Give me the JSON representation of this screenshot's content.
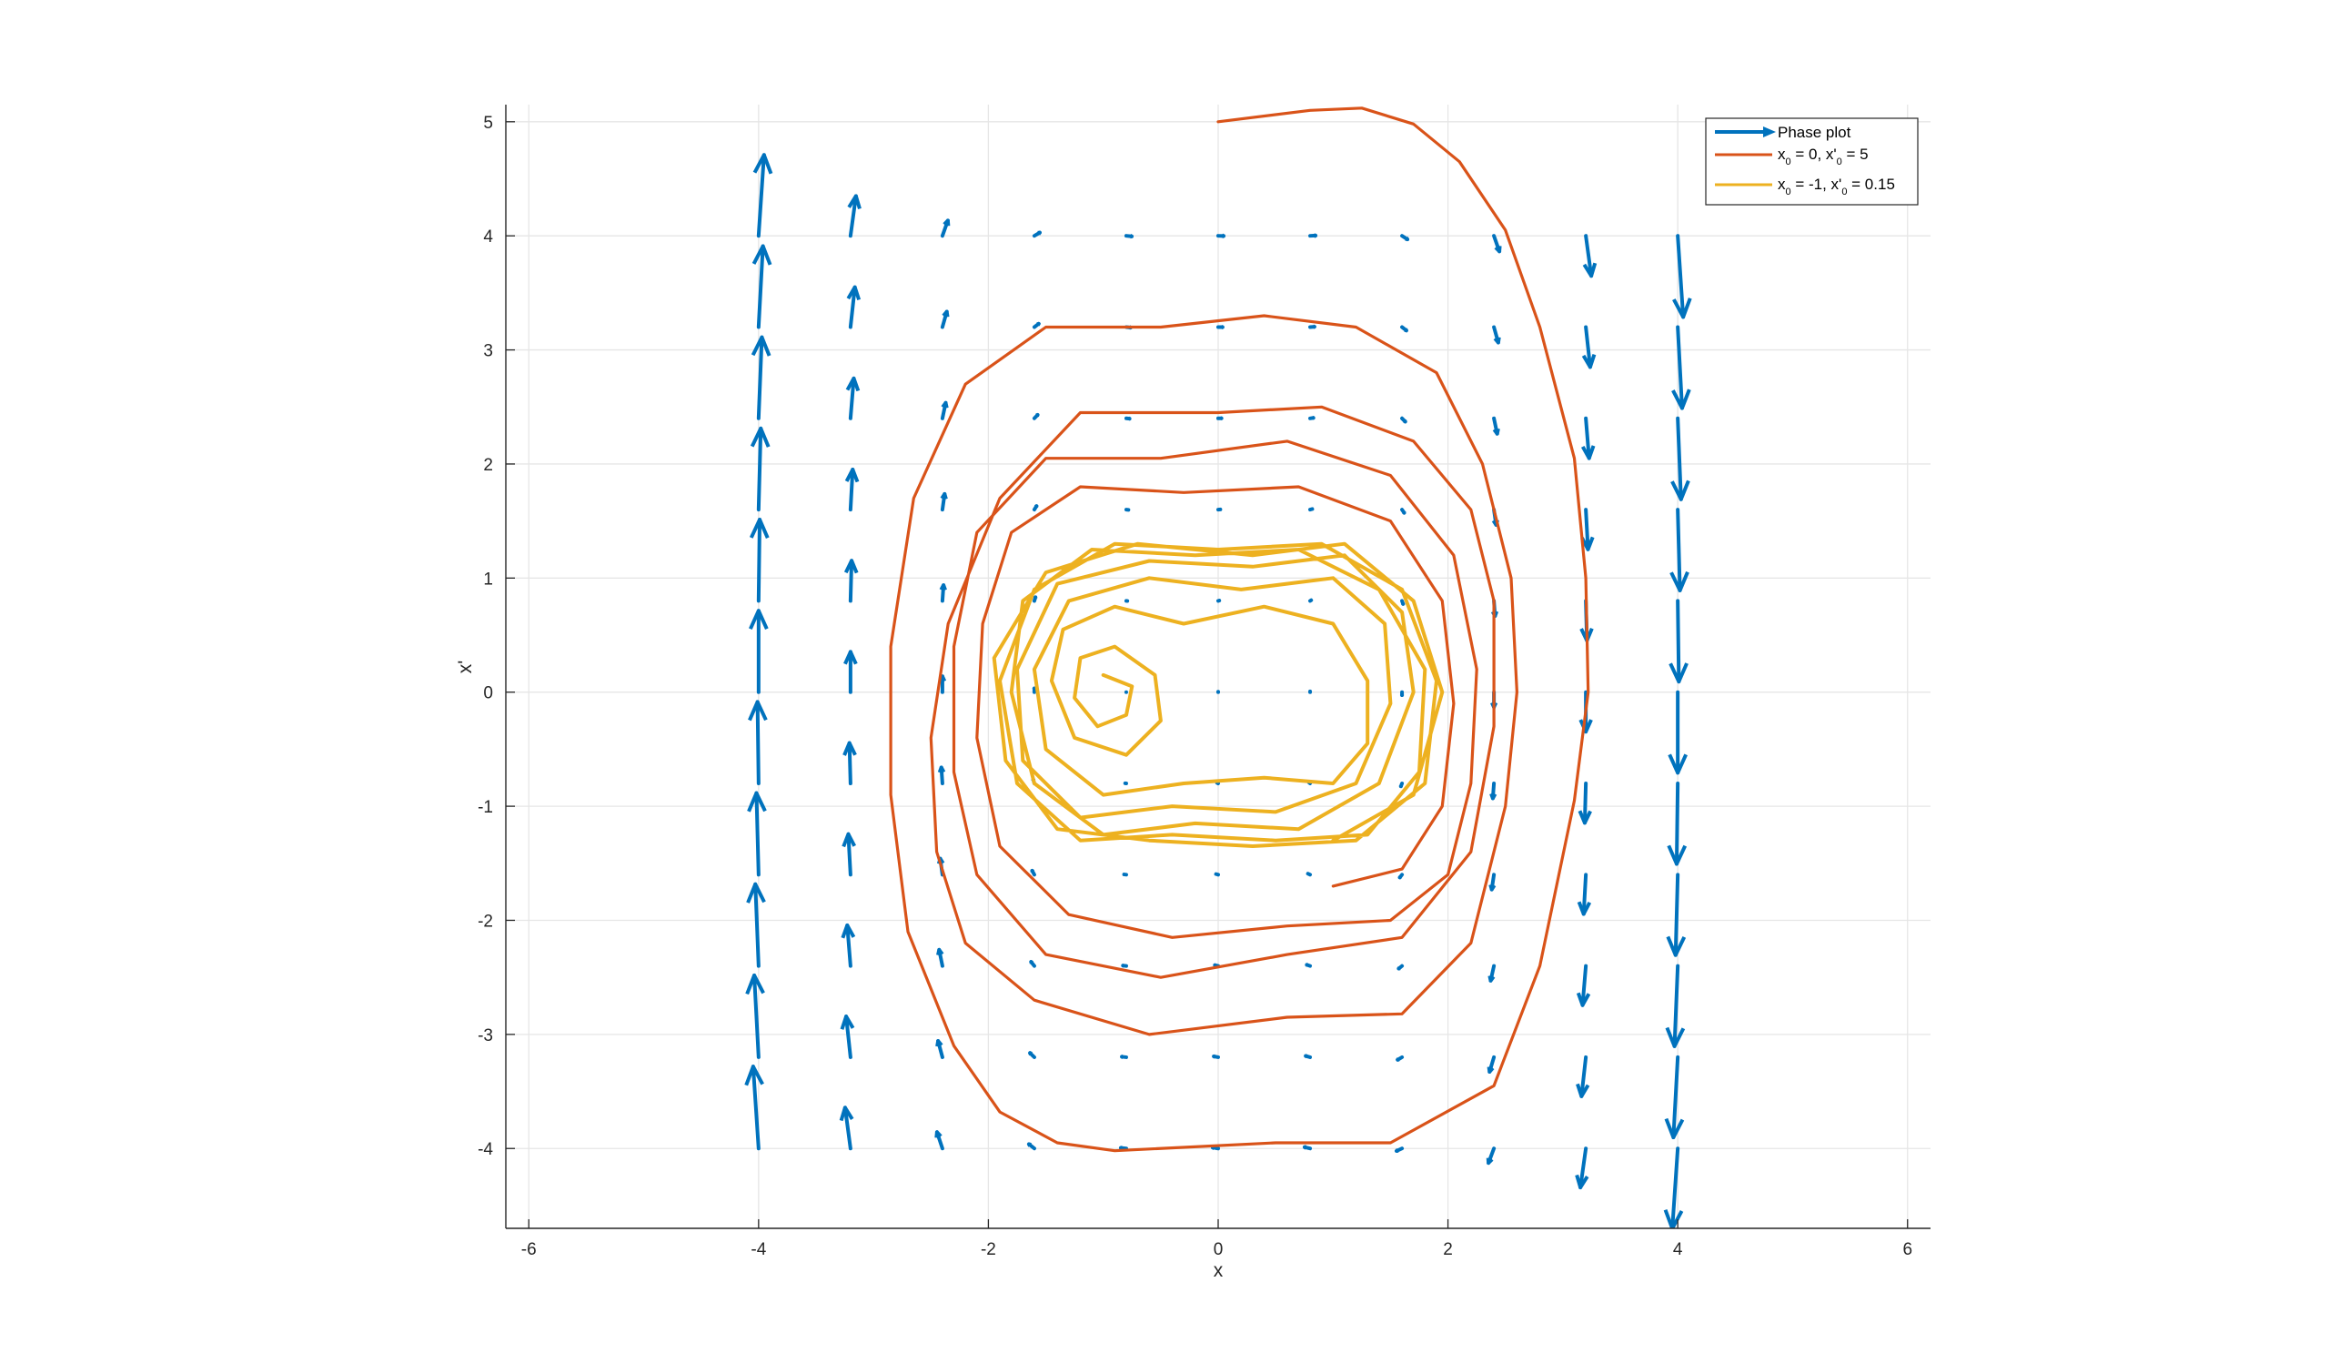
{
  "chart_data": {
    "type": "line",
    "title": "",
    "xlabel": "x",
    "ylabel": "x'",
    "xlim": [
      -6.2,
      6.2
    ],
    "ylim": [
      -4.7,
      5.15
    ],
    "xticks": [
      -6,
      -4,
      -2,
      0,
      2,
      4,
      6
    ],
    "yticks": [
      -4,
      -3,
      -2,
      -1,
      0,
      1,
      2,
      3,
      4,
      5
    ],
    "grid": true,
    "legend_position": "top-right",
    "legend": [
      {
        "name": "Phase plot",
        "color": "#0072BD",
        "kind": "quiver"
      },
      {
        "name": "x0 = 0, x'0 = 5",
        "color": "#D95319",
        "kind": "line"
      },
      {
        "name": "x0 = -1, x'0 = 0.15",
        "color": "#EDB120",
        "kind": "line"
      }
    ],
    "series": [
      {
        "name": "Phase plot",
        "type": "quiver",
        "x_grid": [
          -4,
          -3.2,
          -2.4,
          -1.6,
          -0.8,
          0,
          0.8,
          1.6,
          2.4,
          3.2,
          4
        ],
        "y_grid": [
          -4,
          -3.2,
          -2.4,
          -1.6,
          -0.8,
          0,
          0.8,
          1.6,
          2.4,
          3.2,
          4
        ],
        "vector_field": "u = x', v = x - x^3 - 0.1*x' + 0.3*cos(t)"
      },
      {
        "name": "x0 = 0, x'0 = 5",
        "type": "line",
        "x": [
          0,
          0.8,
          1.25,
          1.7,
          2.1,
          2.5,
          2.8,
          3.1,
          3.2,
          3.22,
          3.1,
          2.8,
          2.4,
          1.5,
          0.5,
          -0.9,
          -1.4,
          -1.9,
          -2.3,
          -2.7,
          -2.85,
          -2.85,
          -2.65,
          -2.2,
          -1.5,
          -0.5,
          0.4,
          1.2,
          1.9,
          2.3,
          2.55,
          2.6,
          2.5,
          2.2,
          1.6,
          0.6,
          -0.6,
          -1.6,
          -2.2,
          -2.45,
          -2.5,
          -2.35,
          -1.9,
          -1.2,
          0,
          0.9,
          1.7,
          2.2,
          2.4,
          2.4,
          2.2,
          1.6,
          0.6,
          -0.5,
          -1.5,
          -2.1,
          -2.3,
          -2.3,
          -2.1,
          -1.5,
          -0.5,
          0.6,
          1.5,
          2.05,
          2.25,
          2.2,
          2.0,
          1.5,
          0.6,
          -0.4,
          -1.3,
          -1.9,
          -2.1,
          -2.05,
          -1.8,
          -1.2,
          -0.3,
          0.7,
          1.5,
          1.95,
          2.05,
          1.95,
          1.6,
          1.0
        ],
        "y": [
          5,
          5.1,
          5.12,
          4.98,
          4.65,
          4.05,
          3.2,
          2.05,
          1.0,
          0,
          -0.95,
          -2.4,
          -3.45,
          -3.95,
          -3.95,
          -4.02,
          -3.95,
          -3.68,
          -3.1,
          -2.1,
          -0.9,
          0.4,
          1.7,
          2.7,
          3.2,
          3.2,
          3.3,
          3.2,
          2.8,
          2.0,
          1.0,
          0,
          -1.0,
          -2.2,
          -2.82,
          -2.85,
          -3.0,
          -2.7,
          -2.2,
          -1.4,
          -0.4,
          0.6,
          1.7,
          2.45,
          2.45,
          2.5,
          2.2,
          1.6,
          0.8,
          -0.3,
          -1.4,
          -2.15,
          -2.3,
          -2.5,
          -2.3,
          -1.6,
          -0.7,
          0.4,
          1.4,
          2.05,
          2.05,
          2.2,
          1.9,
          1.2,
          0.2,
          -0.8,
          -1.6,
          -2.0,
          -2.05,
          -2.15,
          -1.95,
          -1.35,
          -0.4,
          0.6,
          1.4,
          1.8,
          1.75,
          1.8,
          1.5,
          0.8,
          -0.1,
          -1.0,
          -1.55,
          -1.7
        ]
      },
      {
        "name": "x0 = -1, x'0 = 0.15",
        "type": "line",
        "x": [
          -1,
          -0.75,
          -0.8,
          -1.05,
          -1.25,
          -1.2,
          -0.9,
          -0.55,
          -0.5,
          -0.8,
          -1.25,
          -1.45,
          -1.35,
          -0.9,
          -0.3,
          0.4,
          1.0,
          1.3,
          1.3,
          1.0,
          0.4,
          -0.3,
          -1.0,
          -1.5,
          -1.6,
          -1.3,
          -0.6,
          0.2,
          1.0,
          1.45,
          1.5,
          1.2,
          0.5,
          -0.4,
          -1.2,
          -1.7,
          -1.75,
          -1.4,
          -0.6,
          0.3,
          1.1,
          1.6,
          1.7,
          1.4,
          0.7,
          -0.2,
          -1.0,
          -1.6,
          -1.8,
          -1.7,
          -1.1,
          -0.2,
          0.7,
          1.4,
          1.8,
          1.75,
          1.3,
          0.5,
          -0.4,
          -1.2,
          -1.75,
          -1.9,
          -1.6,
          -0.9,
          0,
          0.9,
          1.6,
          1.9,
          1.8,
          1.2,
          0.3,
          -0.6,
          -1.4,
          -1.85,
          -1.95,
          -1.5,
          -0.7,
          0.3,
          1.1,
          1.7,
          1.95,
          1.7,
          1.0
        ],
        "y": [
          0.15,
          0.05,
          -0.2,
          -0.3,
          -0.05,
          0.3,
          0.4,
          0.15,
          -0.25,
          -0.55,
          -0.4,
          0.1,
          0.55,
          0.75,
          0.6,
          0.75,
          0.6,
          0.1,
          -0.45,
          -0.8,
          -0.75,
          -0.8,
          -0.9,
          -0.5,
          0.2,
          0.8,
          1.0,
          0.9,
          1.0,
          0.6,
          -0.1,
          -0.8,
          -1.05,
          -1.0,
          -1.1,
          -0.6,
          0.2,
          0.95,
          1.15,
          1.1,
          1.2,
          0.7,
          0,
          -0.8,
          -1.2,
          -1.15,
          -1.25,
          -0.8,
          0,
          0.8,
          1.25,
          1.2,
          1.25,
          0.9,
          0.2,
          -0.7,
          -1.25,
          -1.3,
          -1.25,
          -1.3,
          -0.8,
          0.1,
          0.9,
          1.3,
          1.25,
          1.3,
          0.9,
          0.1,
          -0.8,
          -1.3,
          -1.35,
          -1.3,
          -1.2,
          -0.6,
          0.3,
          1.05,
          1.3,
          1.2,
          1.3,
          0.8,
          0,
          -0.9,
          -1.3
        ]
      }
    ]
  }
}
